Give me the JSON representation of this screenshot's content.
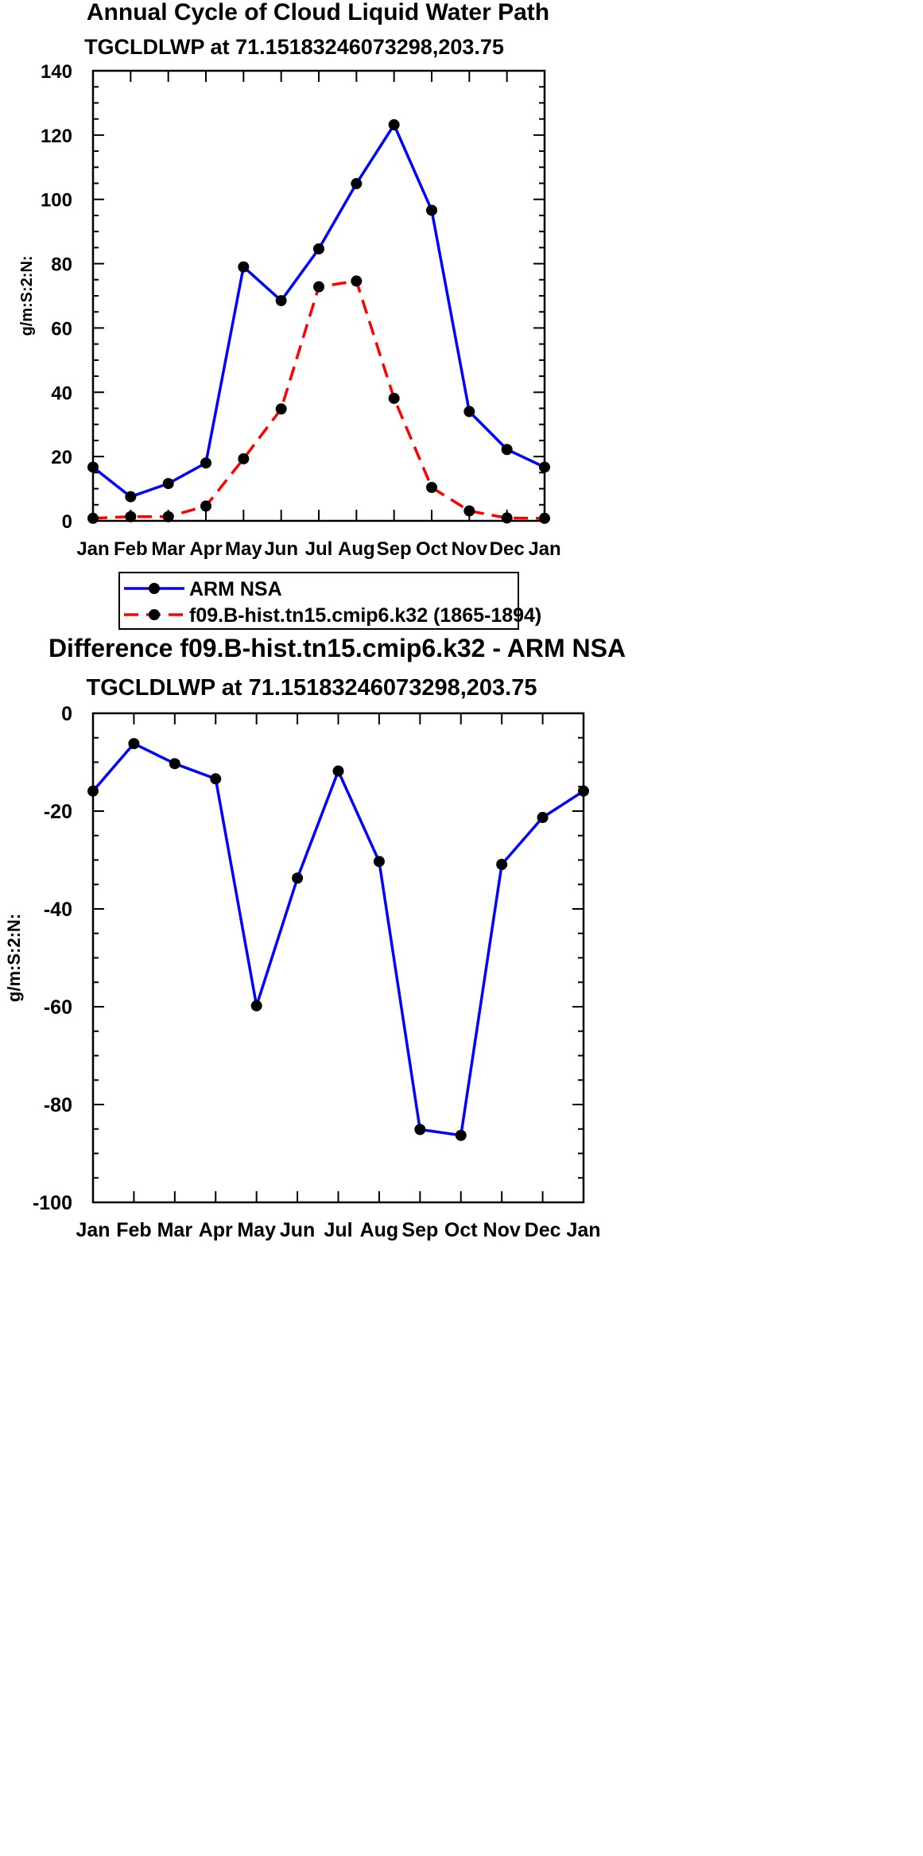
{
  "chart_data": [
    {
      "type": "line",
      "title": "Annual Cycle of Cloud Liquid Water Path",
      "subtitle": "TGCLDLWP at 71.15183246073298,203.75",
      "xlabel": "",
      "ylabel": "g/m:S:2:N:",
      "categories": [
        "Jan",
        "Feb",
        "Mar",
        "Apr",
        "May",
        "Jun",
        "Jul",
        "Aug",
        "Sep",
        "Oct",
        "Nov",
        "Dec",
        "Jan"
      ],
      "ylim": [
        0,
        140
      ],
      "yticks": [
        0,
        20,
        40,
        60,
        80,
        100,
        120,
        140
      ],
      "series": [
        {
          "name": "ARM NSA",
          "color": "#0000ff",
          "dash": false,
          "values": [
            16.7,
            7.5,
            11.6,
            18.0,
            79.0,
            68.5,
            84.6,
            104.9,
            123.2,
            96.6,
            34.0,
            22.2,
            16.7
          ]
        },
        {
          "name": "f09.B-hist.tn15.cmip6.k32 (1865-1894)",
          "color": "#ff0000",
          "dash": true,
          "values": [
            0.8,
            1.3,
            1.3,
            4.6,
            19.3,
            34.8,
            72.8,
            74.6,
            38.1,
            10.4,
            3.1,
            0.9,
            0.8
          ]
        }
      ],
      "legend": {
        "items": [
          "ARM NSA",
          "f09.B-hist.tn15.cmip6.k32 (1865-1894)"
        ]
      }
    },
    {
      "type": "line",
      "title": "Difference f09.B-hist.tn15.cmip6.k32 - ARM NSA",
      "subtitle": "TGCLDLWP at 71.15183246073298,203.75",
      "xlabel": "",
      "ylabel": "g/m:S:2:N:",
      "categories": [
        "Jan",
        "Feb",
        "Mar",
        "Apr",
        "May",
        "Jun",
        "Jul",
        "Aug",
        "Sep",
        "Oct",
        "Nov",
        "Dec",
        "Jan"
      ],
      "ylim": [
        -100,
        0
      ],
      "yticks": [
        0,
        -20,
        -40,
        -60,
        -80,
        -100
      ],
      "series": [
        {
          "name": "Difference",
          "color": "#0000ff",
          "dash": false,
          "values": [
            -15.9,
            -6.2,
            -10.3,
            -13.4,
            -59.8,
            -33.7,
            -11.8,
            -30.3,
            -85.1,
            -86.3,
            -30.9,
            -21.3,
            -15.9
          ]
        }
      ]
    }
  ]
}
